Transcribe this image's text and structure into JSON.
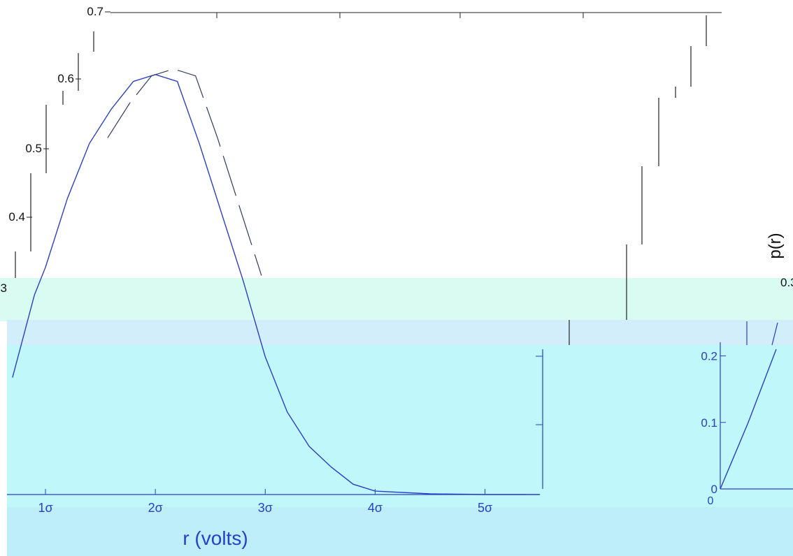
{
  "chart_data": {
    "type": "line",
    "title": "",
    "xlabel": "r (volts)",
    "ylabel": "p(r)",
    "x_ticks": [
      "1σ",
      "2σ",
      "3σ",
      "4σ",
      "5σ"
    ],
    "y_ticks": [
      "0.7",
      "0.6",
      "0.5",
      "0.4",
      "0.3",
      "0.2",
      "0.1",
      "0"
    ],
    "inset_y_ticks": [
      "0.2",
      "0.1",
      "0"
    ],
    "inset_x_ticks": [
      "0"
    ],
    "xlim": [
      0.65,
      5.55
    ],
    "ylim": [
      0,
      0.7
    ],
    "grid": false,
    "series": [
      {
        "color": "#2a3fc8",
        "x": [
          0.7,
          0.9,
          1.0,
          1.2,
          1.4,
          1.6,
          1.8,
          2.0,
          2.2,
          2.4,
          2.6,
          2.8,
          3.0,
          3.2,
          3.4,
          3.6,
          3.8,
          4.0,
          4.5,
          5.0,
          5.5
        ],
        "y": [
          0.17,
          0.29,
          0.33,
          0.43,
          0.51,
          0.56,
          0.6,
          0.61,
          0.6,
          0.51,
          0.41,
          0.31,
          0.2,
          0.12,
          0.07,
          0.04,
          0.015,
          0.005,
          0.001,
          0.0,
          0.0
        ]
      }
    ],
    "inset_series": {
      "color": "#2a3fc8",
      "x": [
        0,
        0.25,
        0.5
      ],
      "y": [
        0.0,
        0.1,
        0.21
      ]
    },
    "colors": {
      "background": "#ffffff",
      "band_top": "#d9fbf1",
      "band_mid": "#d2eefa",
      "band_main": "#bff7fa",
      "band_bottom": "#bdeefa",
      "axis_dark": "#222222",
      "axis_blue": "#2a3fc8"
    }
  }
}
